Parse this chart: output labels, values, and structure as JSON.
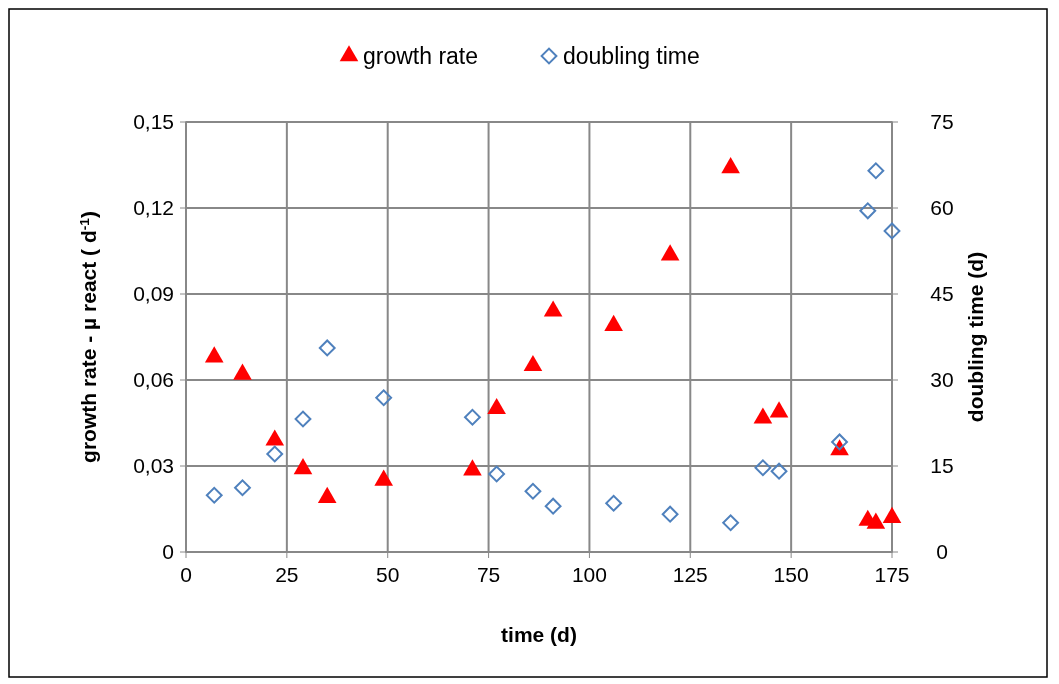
{
  "chart_data": {
    "type": "scatter",
    "xlabel": "time (d)",
    "ylabel": "growth rate - µ react ( d$^{-1}$)",
    "y2label": "doubling time (d)",
    "xlim": [
      0,
      175
    ],
    "xticks": [
      0,
      25,
      50,
      75,
      100,
      125,
      150,
      175
    ],
    "ylim": [
      0,
      0.15
    ],
    "yticks": [
      {
        "value": 0,
        "label": "0"
      },
      {
        "value": 0.03,
        "label": "0,03"
      },
      {
        "value": 0.06,
        "label": "0,06"
      },
      {
        "value": 0.09,
        "label": "0,09"
      },
      {
        "value": 0.12,
        "label": "0,12"
      },
      {
        "value": 0.15,
        "label": "0,15"
      }
    ],
    "y2lim": [
      0,
      75
    ],
    "y2ticks": [
      0,
      15,
      30,
      45,
      60,
      75
    ],
    "grid": true,
    "legend": "top",
    "series": [
      {
        "name": "growth rate",
        "color": "#ff0000",
        "marker": "triangle",
        "x": [
          7,
          14,
          22,
          29,
          35,
          49,
          71,
          77,
          86,
          91,
          106,
          120,
          135,
          143,
          147,
          162,
          169,
          171,
          175
        ],
        "values": [
          0.068,
          0.062,
          0.039,
          0.029,
          0.019,
          0.025,
          0.0286,
          0.05,
          0.065,
          0.084,
          0.079,
          0.1036,
          0.134,
          0.0467,
          0.0488,
          0.0356,
          0.011,
          0.01,
          0.012
        ]
      },
      {
        "name": "doubling time",
        "color": "#4f81bd",
        "marker": "diamond",
        "axis": "y2",
        "x": [
          7,
          14,
          22,
          29,
          35,
          49,
          71,
          77,
          86,
          91,
          106,
          120,
          135,
          143,
          147,
          162,
          169,
          171,
          175
        ],
        "values": [
          9.9,
          11.2,
          17.1,
          23.2,
          35.6,
          26.9,
          23.5,
          13.6,
          10.6,
          8.0,
          8.5,
          6.6,
          5.1,
          14.7,
          14.1,
          19.2,
          59.5,
          66.5,
          56
        ]
      }
    ]
  }
}
